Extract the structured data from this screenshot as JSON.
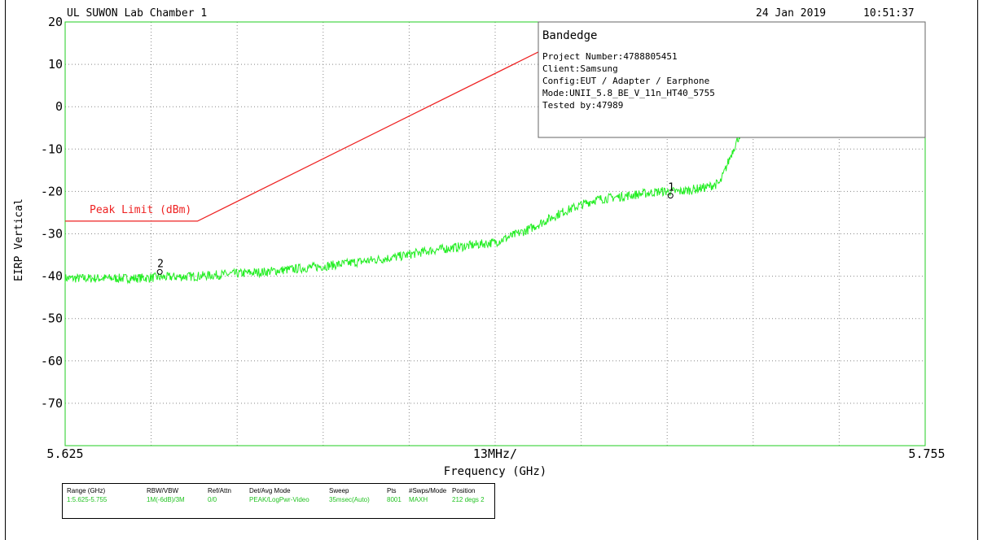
{
  "header": {
    "lab": "UL SUWON Lab Chamber 1",
    "date": "24 Jan 2019",
    "time": "10:51:37"
  },
  "info_box": {
    "title": "Bandedge",
    "lines": [
      "Project Number:4788805451",
      "Client:Samsung",
      "Config:EUT / Adapter / Earphone",
      "Mode:UNII_5.8_BE_V_11n_HT40_5755",
      "Tested by:47989"
    ]
  },
  "limit_label": "Peak Limit (dBm)",
  "x_axis": {
    "start_label": "5.625",
    "center_label": "13MHz/",
    "stop_label": "5.755",
    "title": "Frequency (GHz)"
  },
  "y_axis": {
    "title": "EIRP Vertical",
    "ticks": [
      "20",
      "10",
      "0",
      "-10",
      "-20",
      "-30",
      "-40",
      "-50",
      "-60",
      "-70"
    ]
  },
  "markers": [
    {
      "label": "1",
      "x": 5.7165,
      "y": -21
    },
    {
      "label": "2",
      "x": 5.6393,
      "y": -39
    }
  ],
  "settings": {
    "columns": [
      {
        "header": "Range (GHz)",
        "value": "1:5.625-5.755"
      },
      {
        "header": "RBW/VBW",
        "value": "1M(-6dB)/3M"
      },
      {
        "header": "Ref/Attn",
        "value": "0/0"
      },
      {
        "header": "Det/Avg Mode",
        "value": "PEAK/LogPwr-Video"
      },
      {
        "header": "Sweep",
        "value": "35msec(Auto)"
      },
      {
        "header": "Pts",
        "value": "8001"
      },
      {
        "header": "#Swps/Mode",
        "value": "MAXH"
      },
      {
        "header": "Position",
        "value": "212 degs 2"
      }
    ]
  },
  "colors": {
    "trace": "#22ee22",
    "limit": "#ee2222",
    "grid": "#888888",
    "axis_border": "#22cc22"
  },
  "chart_data": {
    "type": "line",
    "xlim": [
      5.625,
      5.755
    ],
    "ylim": [
      -80,
      20
    ],
    "grid": true,
    "series": [
      {
        "name": "Peak Limit (dBm)",
        "x": [
          5.625,
          5.645,
          5.7,
          5.715
        ],
        "y": [
          -27,
          -27,
          15.6,
          27
        ]
      },
      {
        "name": "",
        "x": [
          5.625,
          5.635,
          5.645,
          5.655,
          5.665,
          5.675,
          5.68,
          5.685,
          5.69,
          5.695,
          5.7,
          5.705,
          5.71,
          5.715,
          5.718,
          5.72,
          5.722,
          5.724,
          5.726,
          5.728,
          5.73,
          5.734,
          5.738,
          5.742,
          5.746,
          5.75,
          5.752,
          5.754,
          5.755
        ],
        "y": [
          -40.5,
          -40.5,
          -40,
          -39,
          -37.5,
          -35.5,
          -34,
          -33,
          -32,
          -29,
          -25,
          -22,
          -21,
          -20,
          -20,
          -19.5,
          -19,
          -18,
          -10,
          -3,
          2,
          5,
          6,
          6.5,
          6.3,
          6,
          5,
          3,
          1
        ]
      }
    ]
  }
}
